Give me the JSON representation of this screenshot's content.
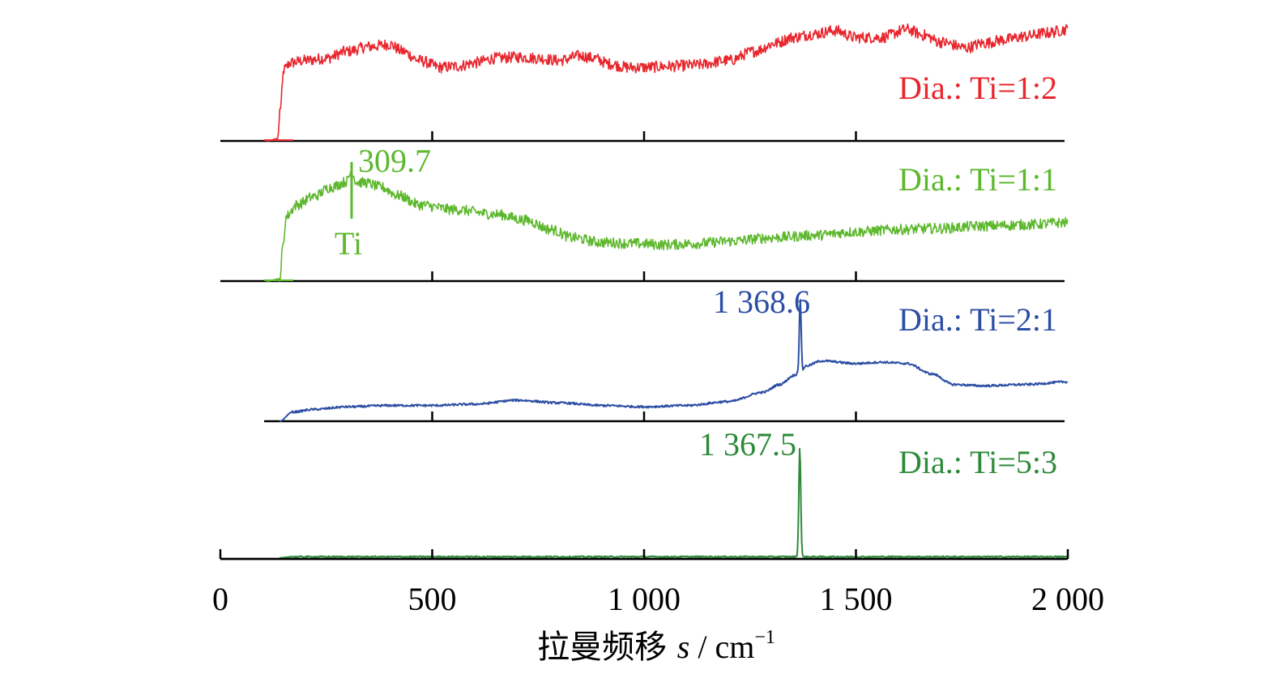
{
  "chart_data": {
    "type": "line",
    "layout": "stacked",
    "x_axis": {
      "label_main": "拉曼频移 ",
      "label_var": "s",
      "label_sep": " / cm",
      "label_exp": "−1",
      "range": [
        0,
        2000
      ],
      "ticks": [
        {
          "value": 0,
          "label": "0"
        },
        {
          "value": 500,
          "label": "500"
        },
        {
          "value": 1000,
          "label": "1 000"
        },
        {
          "value": 1500,
          "label": "1 500"
        },
        {
          "value": 2000,
          "label": "2 000"
        }
      ]
    },
    "series": [
      {
        "name": "Dia.: Ti=1:2",
        "color": "#e8262d",
        "x_start": 110,
        "noise": 0.05,
        "y_range": [
          0,
          1.05
        ],
        "points": [
          [
            110,
            0
          ],
          [
            135,
            0.02
          ],
          [
            142,
            0.3
          ],
          [
            150,
            0.62
          ],
          [
            165,
            0.68
          ],
          [
            200,
            0.7
          ],
          [
            250,
            0.72
          ],
          [
            300,
            0.78
          ],
          [
            350,
            0.82
          ],
          [
            400,
            0.84
          ],
          [
            430,
            0.78
          ],
          [
            470,
            0.7
          ],
          [
            520,
            0.64
          ],
          [
            560,
            0.65
          ],
          [
            600,
            0.68
          ],
          [
            650,
            0.72
          ],
          [
            700,
            0.73
          ],
          [
            750,
            0.72
          ],
          [
            800,
            0.7
          ],
          [
            850,
            0.74
          ],
          [
            880,
            0.72
          ],
          [
            920,
            0.67
          ],
          [
            960,
            0.64
          ],
          [
            1000,
            0.64
          ],
          [
            1060,
            0.65
          ],
          [
            1120,
            0.66
          ],
          [
            1200,
            0.7
          ],
          [
            1260,
            0.78
          ],
          [
            1310,
            0.85
          ],
          [
            1350,
            0.9
          ],
          [
            1400,
            0.93
          ],
          [
            1450,
            0.96
          ],
          [
            1500,
            0.9
          ],
          [
            1560,
            0.9
          ],
          [
            1620,
            0.97
          ],
          [
            1660,
            0.92
          ],
          [
            1700,
            0.86
          ],
          [
            1760,
            0.81
          ],
          [
            1800,
            0.85
          ],
          [
            1850,
            0.88
          ],
          [
            1900,
            0.91
          ],
          [
            1950,
            0.94
          ],
          [
            2000,
            0.97
          ]
        ]
      },
      {
        "name": "Dia.: Ti=1:1",
        "color": "#5db82e",
        "x_start": 110,
        "noise": 0.045,
        "y_range": [
          0,
          1.05
        ],
        "points": [
          [
            110,
            0
          ],
          [
            140,
            0.02
          ],
          [
            148,
            0.3
          ],
          [
            155,
            0.55
          ],
          [
            180,
            0.65
          ],
          [
            220,
            0.72
          ],
          [
            260,
            0.8
          ],
          [
            300,
            0.85
          ],
          [
            340,
            0.84
          ],
          [
            380,
            0.8
          ],
          [
            420,
            0.73
          ],
          [
            470,
            0.65
          ],
          [
            550,
            0.61
          ],
          [
            650,
            0.57
          ],
          [
            720,
            0.52
          ],
          [
            780,
            0.44
          ],
          [
            830,
            0.37
          ],
          [
            900,
            0.33
          ],
          [
            980,
            0.32
          ],
          [
            1050,
            0.31
          ],
          [
            1120,
            0.32
          ],
          [
            1200,
            0.34
          ],
          [
            1300,
            0.37
          ],
          [
            1400,
            0.39
          ],
          [
            1500,
            0.42
          ],
          [
            1600,
            0.44
          ],
          [
            1700,
            0.45
          ],
          [
            1800,
            0.47
          ],
          [
            1900,
            0.48
          ],
          [
            2000,
            0.5
          ]
        ],
        "peak": {
          "x": 309.7,
          "h": 0.1
        }
      },
      {
        "name": "Dia.: Ti=2:1",
        "color": "#2c4ea3",
        "x_start": 140,
        "noise": 0.008,
        "y_range": [
          0,
          1.05
        ],
        "points": [
          [
            140,
            0
          ],
          [
            170,
            0.07
          ],
          [
            220,
            0.09
          ],
          [
            300,
            0.11
          ],
          [
            400,
            0.12
          ],
          [
            500,
            0.12
          ],
          [
            600,
            0.13
          ],
          [
            700,
            0.16
          ],
          [
            800,
            0.14
          ],
          [
            900,
            0.12
          ],
          [
            1000,
            0.11
          ],
          [
            1100,
            0.12
          ],
          [
            1200,
            0.15
          ],
          [
            1280,
            0.22
          ],
          [
            1320,
            0.28
          ],
          [
            1355,
            0.35
          ],
          [
            1364,
            0.37
          ],
          [
            1372,
            0.37
          ],
          [
            1380,
            0.42
          ],
          [
            1420,
            0.46
          ],
          [
            1500,
            0.44
          ],
          [
            1560,
            0.45
          ],
          [
            1620,
            0.44
          ],
          [
            1680,
            0.36
          ],
          [
            1730,
            0.28
          ],
          [
            1800,
            0.27
          ],
          [
            1900,
            0.28
          ],
          [
            2000,
            0.3
          ]
        ],
        "peak": {
          "x": 1368.6,
          "h": 0.55
        }
      },
      {
        "name": "Dia.: Ti=5:3",
        "color": "#2e8a3a",
        "x_start": 140,
        "noise": 0.006,
        "y_range": [
          0,
          1.05
        ],
        "points": [
          [
            140,
            0.01
          ],
          [
            170,
            0.02
          ],
          [
            400,
            0.02
          ],
          [
            800,
            0.02
          ],
          [
            1200,
            0.02
          ],
          [
            1340,
            0.02
          ],
          [
            1390,
            0.02
          ],
          [
            1500,
            0.02
          ],
          [
            1700,
            0.02
          ],
          [
            2000,
            0.02
          ]
        ],
        "peak": {
          "x": 1367.5,
          "h": 1.0
        }
      }
    ],
    "annotations": [
      {
        "text": "309.7",
        "series": 1
      },
      {
        "text": "Ti",
        "series": 1
      },
      {
        "text": "1 368.6",
        "series": 2
      },
      {
        "text": "1 367.5",
        "series": 3
      }
    ]
  }
}
